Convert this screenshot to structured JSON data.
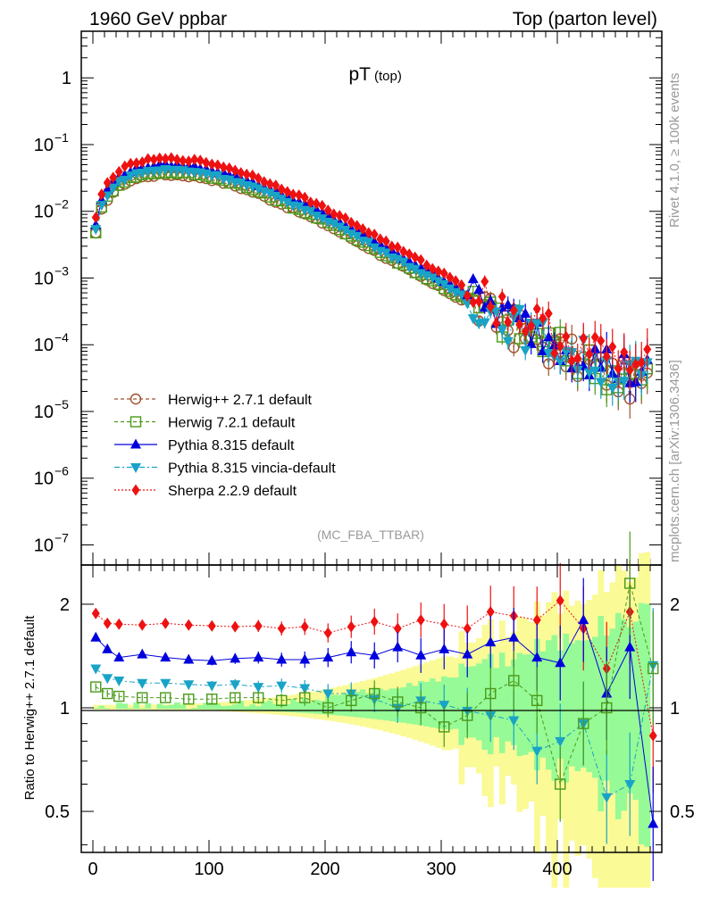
{
  "header": {
    "left": "1960 GeV ppbar",
    "right": "Top (parton level)",
    "side_rivet": "Rivet 4.1.0, ≥ 100k events",
    "side_mcplots": "mcplots.cern.ch [arXiv:1306.3436]"
  },
  "colors": {
    "herwigpp": "#a0522d",
    "herwig7": "#4a9a1a",
    "pythia": "#0000dd",
    "vincia": "#19a3c6",
    "sherpa": "#ee1111",
    "band_yellow": "#fafa96",
    "band_green": "#96fa96"
  },
  "chart_data": [
    {
      "type": "scatter",
      "panel": "main",
      "title": "pT",
      "title_sub": "(top)",
      "watermark": "(MC_FBA_TTBAR)",
      "xlim": [
        -10,
        490
      ],
      "ylim": [
        5e-08,
        5
      ],
      "yscale": "log",
      "ytick_labels": [
        {
          "value": 1,
          "base": "1",
          "exp": ""
        },
        {
          "value": 0.1,
          "base": "10",
          "exp": "−1"
        },
        {
          "value": 0.01,
          "base": "10",
          "exp": "−2"
        },
        {
          "value": 0.001,
          "base": "10",
          "exp": "−3"
        },
        {
          "value": 0.0001,
          "base": "10",
          "exp": "−4"
        },
        {
          "value": 1e-05,
          "base": "10",
          "exp": "−5"
        },
        {
          "value": 1e-06,
          "base": "10",
          "exp": "−6"
        },
        {
          "value": 1e-07,
          "base": "10",
          "exp": "−7"
        }
      ],
      "legend_position": "lower-left",
      "reference_curve": {
        "description": "Herwig++ 2.7.1 default pT(top) distribution, normalised",
        "x": [
          0,
          5,
          10,
          20,
          30,
          40,
          50,
          60,
          70,
          80,
          90,
          100,
          120,
          140,
          160,
          180,
          200,
          220,
          240,
          260,
          280,
          300,
          320,
          340,
          360,
          380,
          400,
          420,
          440,
          460,
          480
        ],
        "y": [
          0.0026,
          0.008,
          0.0135,
          0.022,
          0.028,
          0.032,
          0.0345,
          0.0355,
          0.0355,
          0.0345,
          0.033,
          0.031,
          0.025,
          0.019,
          0.0135,
          0.0095,
          0.0065,
          0.0042,
          0.0027,
          0.0017,
          0.0011,
          0.0007,
          0.00045,
          0.00028,
          0.00018,
          0.00012,
          8e-05,
          5.5e-05,
          4e-05,
          3e-05,
          2.5e-05
        ]
      },
      "series": [
        {
          "name": "Herwig++ 2.7.1 default",
          "color_key": "herwigpp",
          "marker": "open-circle",
          "line": "dashed",
          "ratio_to_reference": 1.0
        },
        {
          "name": "Herwig 7.2.1 default",
          "color_key": "herwig7",
          "marker": "open-square",
          "line": "dashed",
          "ratio_to_reference": 1.08
        },
        {
          "name": "Pythia 8.315 default",
          "color_key": "pythia",
          "marker": "triangle-up",
          "line": "solid",
          "ratio_to_reference": 1.38
        },
        {
          "name": "Pythia 8.315 vincia-default",
          "color_key": "vincia",
          "marker": "triangle-down",
          "line": "dashdot",
          "ratio_to_reference": 1.18
        },
        {
          "name": "Sherpa 2.2.9 default",
          "color_key": "sherpa",
          "marker": "diamond",
          "line": "dotted",
          "ratio_to_reference": 1.72
        }
      ]
    },
    {
      "type": "scatter",
      "panel": "ratio",
      "ylabel": "Ratio to Herwig++ 2.7.1 default",
      "xlim": [
        -10,
        490
      ],
      "ylim": [
        0.38,
        2.6
      ],
      "yscale": "log",
      "ytick_labels": [
        {
          "value": 0.5,
          "label": "0.5"
        },
        {
          "value": 1,
          "label": "1"
        },
        {
          "value": 2,
          "label": "2"
        }
      ],
      "xtick_labels": [
        {
          "value": 0,
          "label": "0"
        },
        {
          "value": 100,
          "label": "100"
        },
        {
          "value": 200,
          "label": "200"
        },
        {
          "value": 300,
          "label": "300"
        },
        {
          "value": 400,
          "label": "400"
        }
      ],
      "series_ratio": [
        {
          "name": "Sherpa 2.2.9 default",
          "x": [
            0,
            10,
            20,
            40,
            60,
            80,
            100,
            120,
            140,
            160,
            180,
            200,
            220,
            240,
            260,
            280,
            300,
            320,
            340,
            360,
            380,
            400,
            420,
            440,
            460,
            480
          ],
          "y": [
            1.88,
            1.76,
            1.75,
            1.74,
            1.76,
            1.74,
            1.73,
            1.72,
            1.73,
            1.7,
            1.72,
            1.65,
            1.72,
            1.78,
            1.7,
            1.8,
            1.75,
            1.7,
            1.9,
            1.85,
            1.8,
            2.05,
            1.7,
            1.3,
            1.9,
            0.83
          ]
        },
        {
          "name": "Pythia 8.315 default",
          "x": [
            0,
            10,
            20,
            40,
            60,
            80,
            100,
            120,
            140,
            160,
            180,
            200,
            220,
            240,
            260,
            280,
            300,
            320,
            340,
            360,
            380,
            400,
            420,
            440,
            460,
            480
          ],
          "y": [
            1.6,
            1.48,
            1.4,
            1.43,
            1.4,
            1.38,
            1.37,
            1.39,
            1.4,
            1.38,
            1.38,
            1.4,
            1.45,
            1.42,
            1.5,
            1.42,
            1.48,
            1.43,
            1.55,
            1.6,
            1.4,
            1.35,
            1.8,
            1.1,
            1.5,
            0.46
          ]
        },
        {
          "name": "Pythia 8.315 vincia-default",
          "x": [
            0,
            10,
            20,
            40,
            60,
            80,
            100,
            120,
            140,
            160,
            180,
            200,
            220,
            240,
            260,
            280,
            300,
            320,
            340,
            360,
            380,
            400,
            420,
            440,
            460,
            480
          ],
          "y": [
            1.3,
            1.22,
            1.2,
            1.18,
            1.18,
            1.17,
            1.16,
            1.17,
            1.15,
            1.16,
            1.14,
            1.1,
            1.1,
            1.06,
            1.0,
            1.05,
            1.02,
            0.98,
            0.95,
            0.92,
            0.75,
            0.8,
            0.9,
            0.55,
            0.6,
            1.33
          ]
        },
        {
          "name": "Herwig 7.2.1 default",
          "x": [
            0,
            10,
            20,
            40,
            60,
            80,
            100,
            120,
            140,
            160,
            180,
            200,
            220,
            240,
            260,
            280,
            300,
            320,
            340,
            360,
            380,
            400,
            420,
            440,
            460,
            480
          ],
          "y": [
            1.15,
            1.1,
            1.08,
            1.07,
            1.07,
            1.06,
            1.06,
            1.07,
            1.07,
            1.05,
            1.07,
            1.0,
            1.05,
            1.1,
            1.04,
            1.0,
            0.88,
            0.95,
            1.1,
            1.2,
            1.05,
            0.6,
            0.9,
            1.0,
            2.3,
            1.3
          ]
        }
      ]
    }
  ]
}
